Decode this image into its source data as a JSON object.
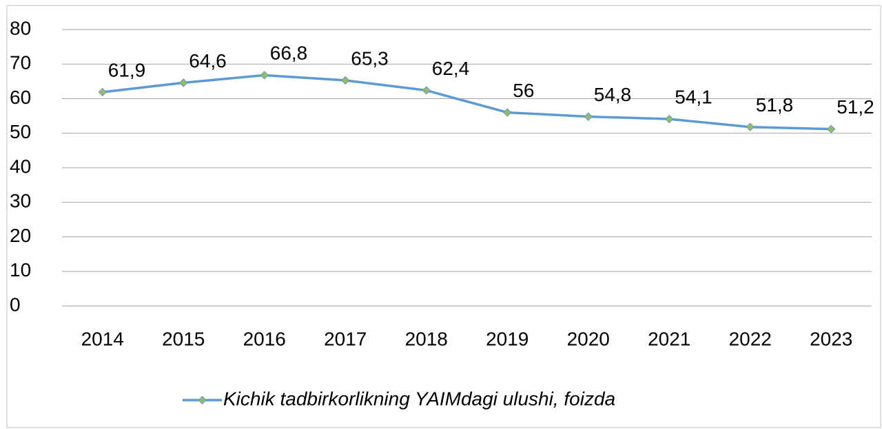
{
  "chart_data": {
    "type": "line",
    "categories": [
      "2014",
      "2015",
      "2016",
      "2017",
      "2018",
      "2019",
      "2020",
      "2021",
      "2022",
      "2023"
    ],
    "series": [
      {
        "name": "Kichik tadbirkorlikning YAIMdagi ulushi, foizda",
        "color": "#5b9bd5",
        "marker_color": "#9bbb59",
        "values": [
          61.9,
          64.6,
          66.8,
          65.3,
          62.4,
          56,
          54.8,
          54.1,
          51.8,
          51.2
        ],
        "value_labels": [
          "61,9",
          "64,6",
          "66,8",
          "65,3",
          "62,4",
          "56",
          "54,8",
          "54,1",
          "51,8",
          "51,2"
        ]
      }
    ],
    "ylim": [
      0,
      80
    ],
    "yticks": [
      0,
      10,
      20,
      30,
      40,
      50,
      60,
      70,
      80
    ],
    "grid": true,
    "legend": "bottom"
  }
}
